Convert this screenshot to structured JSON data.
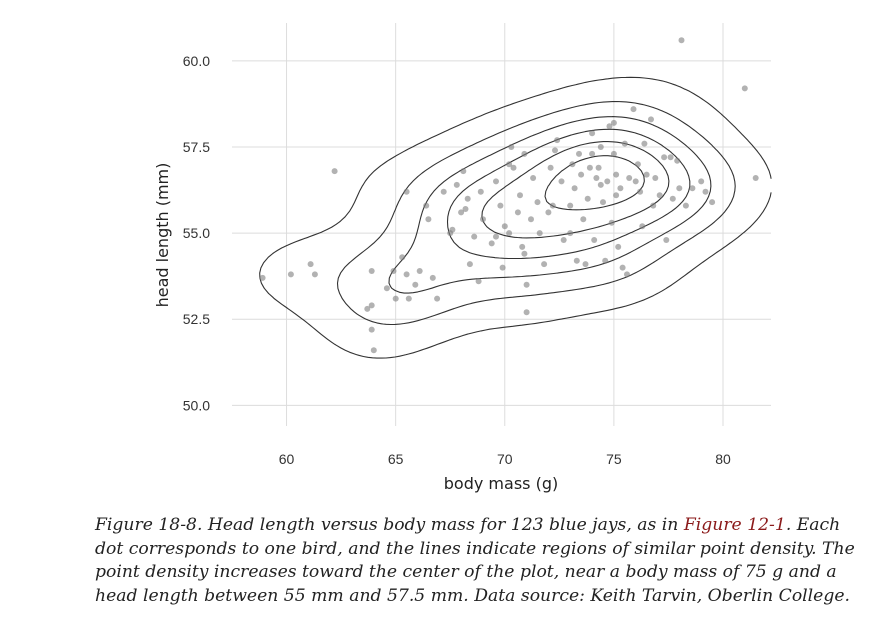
{
  "chart_data": {
    "type": "scatter",
    "xlabel": "body mass (g)",
    "ylabel": "head length (mm)",
    "xlim": [
      57.5,
      82.2
    ],
    "ylim": [
      49.4,
      61.1
    ],
    "x_ticks": [
      60,
      65,
      70,
      75,
      80
    ],
    "x_tick_labels": [
      "60",
      "65",
      "70",
      "75",
      "80"
    ],
    "y_ticks": [
      50.0,
      52.5,
      55.0,
      57.5,
      60.0
    ],
    "y_tick_labels": [
      "50.0",
      "52.5",
      "55.0",
      "57.5",
      "60.0"
    ],
    "grid": true,
    "legend": "none",
    "colors": {
      "points": "#7f7f7f",
      "contours": "#333333",
      "grid": "#dcdcdc",
      "caption_link": "#8b1a1a"
    },
    "points": [
      [
        58.9,
        53.7
      ],
      [
        60.2,
        53.8
      ],
      [
        61.1,
        54.1
      ],
      [
        61.3,
        53.8
      ],
      [
        62.2,
        56.8
      ],
      [
        63.7,
        52.8
      ],
      [
        63.9,
        52.9
      ],
      [
        63.9,
        52.2
      ],
      [
        64.0,
        51.6
      ],
      [
        63.9,
        53.9
      ],
      [
        64.6,
        53.4
      ],
      [
        64.9,
        53.9
      ],
      [
        65.0,
        53.1
      ],
      [
        65.3,
        54.3
      ],
      [
        65.5,
        53.8
      ],
      [
        65.6,
        53.1
      ],
      [
        65.5,
        56.2
      ],
      [
        65.9,
        53.5
      ],
      [
        66.1,
        53.9
      ],
      [
        66.5,
        55.4
      ],
      [
        66.4,
        55.8
      ],
      [
        66.7,
        53.7
      ],
      [
        66.9,
        53.1
      ],
      [
        67.2,
        56.2
      ],
      [
        67.6,
        55.1
      ],
      [
        67.5,
        55.0
      ],
      [
        67.8,
        56.4
      ],
      [
        68.1,
        56.8
      ],
      [
        68.0,
        55.6
      ],
      [
        68.2,
        55.7
      ],
      [
        68.4,
        54.1
      ],
      [
        68.6,
        54.9
      ],
      [
        68.9,
        56.2
      ],
      [
        69.0,
        55.4
      ],
      [
        68.8,
        53.6
      ],
      [
        69.4,
        54.7
      ],
      [
        69.6,
        54.9
      ],
      [
        69.6,
        56.5
      ],
      [
        69.8,
        55.8
      ],
      [
        69.9,
        54.0
      ],
      [
        70.0,
        55.2
      ],
      [
        70.2,
        57.0
      ],
      [
        70.2,
        55.0
      ],
      [
        70.3,
        57.5
      ],
      [
        70.4,
        56.9
      ],
      [
        70.6,
        55.6
      ],
      [
        70.7,
        56.1
      ],
      [
        70.8,
        54.6
      ],
      [
        70.9,
        57.3
      ],
      [
        70.9,
        54.4
      ],
      [
        71.0,
        53.5
      ],
      [
        71.0,
        52.7
      ],
      [
        71.2,
        55.4
      ],
      [
        71.3,
        56.6
      ],
      [
        71.5,
        55.9
      ],
      [
        71.6,
        55.0
      ],
      [
        71.8,
        54.1
      ],
      [
        72.0,
        55.6
      ],
      [
        72.1,
        56.9
      ],
      [
        72.2,
        55.8
      ],
      [
        72.3,
        57.4
      ],
      [
        72.4,
        57.7
      ],
      [
        72.6,
        56.5
      ],
      [
        72.7,
        54.8
      ],
      [
        73.0,
        55.0
      ],
      [
        73.0,
        55.8
      ],
      [
        73.1,
        57.0
      ],
      [
        73.2,
        56.3
      ],
      [
        73.3,
        54.2
      ],
      [
        73.4,
        57.3
      ],
      [
        73.5,
        56.7
      ],
      [
        73.6,
        55.4
      ],
      [
        73.7,
        54.1
      ],
      [
        73.8,
        56.0
      ],
      [
        73.9,
        56.9
      ],
      [
        74.0,
        57.3
      ],
      [
        74.0,
        57.9
      ],
      [
        74.1,
        54.8
      ],
      [
        74.2,
        56.6
      ],
      [
        74.3,
        56.9
      ],
      [
        74.4,
        56.4
      ],
      [
        74.4,
        57.5
      ],
      [
        74.5,
        55.9
      ],
      [
        74.6,
        54.2
      ],
      [
        74.7,
        56.5
      ],
      [
        74.8,
        58.1
      ],
      [
        74.9,
        55.3
      ],
      [
        75.0,
        58.2
      ],
      [
        75.0,
        57.3
      ],
      [
        75.1,
        56.1
      ],
      [
        75.1,
        56.7
      ],
      [
        75.2,
        54.6
      ],
      [
        75.3,
        56.3
      ],
      [
        75.4,
        54.0
      ],
      [
        75.5,
        57.6
      ],
      [
        75.6,
        53.8
      ],
      [
        75.7,
        56.6
      ],
      [
        75.9,
        58.6
      ],
      [
        76.0,
        56.5
      ],
      [
        76.1,
        57.0
      ],
      [
        76.2,
        56.2
      ],
      [
        76.3,
        55.2
      ],
      [
        76.4,
        57.6
      ],
      [
        76.5,
        56.7
      ],
      [
        76.7,
        58.3
      ],
      [
        76.8,
        55.8
      ],
      [
        76.9,
        56.6
      ],
      [
        77.1,
        56.1
      ],
      [
        77.3,
        57.2
      ],
      [
        77.4,
        54.8
      ],
      [
        77.6,
        57.2
      ],
      [
        77.7,
        56.0
      ],
      [
        77.9,
        57.1
      ],
      [
        78.0,
        56.3
      ],
      [
        78.1,
        60.6
      ],
      [
        78.3,
        55.8
      ],
      [
        78.6,
        56.3
      ],
      [
        79.0,
        56.5
      ],
      [
        79.2,
        56.2
      ],
      [
        79.5,
        55.9
      ],
      [
        81.0,
        59.2
      ],
      [
        81.5,
        56.6
      ],
      [
        68.3,
        56.0
      ]
    ],
    "density_levels": 6
  },
  "caption": {
    "before_link": "Figure 18-8. Head length versus body mass for 123 blue jays, as in ",
    "link": "Figure 12-1",
    "after_link": ". Each dot corresponds to one bird, and the lines indicate regions of similar point density. The point density increases toward the center of the plot, near a body mass of 75 g and a head length between 55 mm and 57.5 mm. Data source: Keith Tarvin, Oberlin College."
  }
}
